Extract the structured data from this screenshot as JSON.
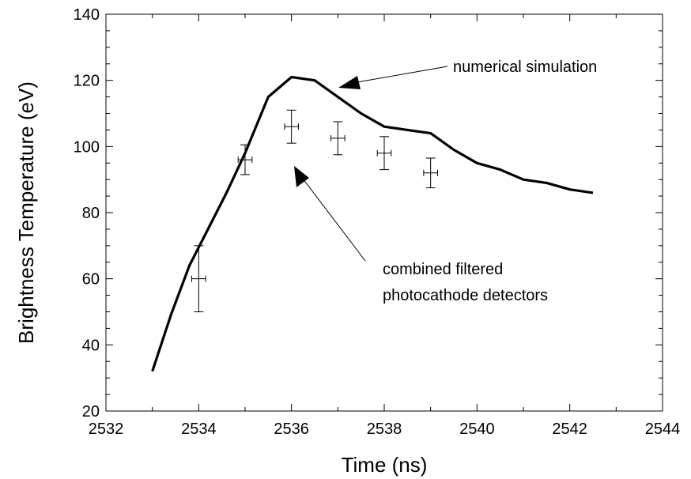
{
  "chart_data": {
    "type": "line",
    "title": "",
    "xlabel": "Time (ns)",
    "ylabel": "Brightness Temperature (eV)",
    "xlim": [
      2532,
      2544
    ],
    "ylim": [
      20,
      140
    ],
    "xticks": [
      2532,
      2534,
      2536,
      2538,
      2540,
      2542,
      2544
    ],
    "yticks": [
      20,
      40,
      60,
      80,
      100,
      120,
      140
    ],
    "x_tick_labels": [
      "2532",
      "2534",
      "2536",
      "2538",
      "2540",
      "2542",
      "2544"
    ],
    "y_tick_labels": [
      "20",
      "40",
      "60",
      "80",
      "100",
      "120",
      "140"
    ],
    "grid": false,
    "legend": "none",
    "series": [
      {
        "kind": "line",
        "color": "#000000",
        "x": [
          2533.0,
          2533.4,
          2533.8,
          2534.2,
          2534.6,
          2535.0,
          2535.5,
          2536.0,
          2536.5,
          2537.0,
          2537.5,
          2538.0,
          2538.5,
          2539.0,
          2539.5,
          2540.0,
          2540.5,
          2541.0,
          2541.5,
          2542.0,
          2542.5
        ],
        "y": [
          32,
          49,
          64,
          75,
          86,
          98,
          115,
          121,
          120,
          115,
          110,
          106,
          105,
          104,
          99,
          95,
          93,
          90,
          89,
          87,
          86
        ]
      },
      {
        "kind": "errorbar",
        "color": "#000000",
        "x": [
          2534,
          2535,
          2536,
          2537,
          2538,
          2539
        ],
        "y": [
          60,
          96,
          106,
          102.5,
          98,
          92
        ],
        "y_err": [
          10,
          4.5,
          5,
          5,
          5,
          4.5
        ],
        "x_err": [
          0.15,
          0.15,
          0.15,
          0.15,
          0.15,
          0.15
        ]
      }
    ],
    "annotations": [
      {
        "text": "numerical simulation",
        "target_x": 2536.55,
        "target_y": 117.5
      },
      {
        "lines": [
          "combined filtered",
          "photocathode detectors"
        ],
        "target_x": 2536.3,
        "target_y": 92
      }
    ]
  }
}
